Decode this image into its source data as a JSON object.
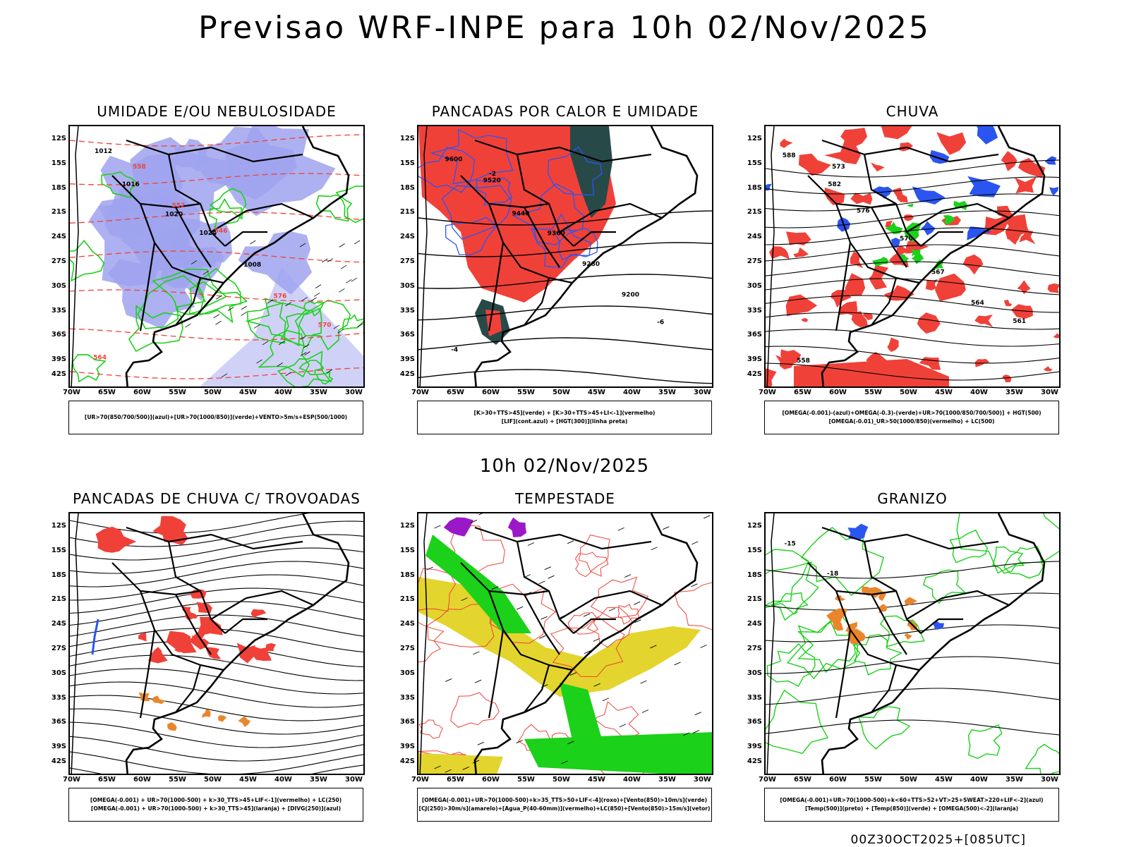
{
  "main_title": "Previsao WRF-INPE  para 10h 02/Nov/2025",
  "mid_title": "10h 02/Nov/2025",
  "footer": "00Z30OCT2025+[085UTC]",
  "lat_labels": [
    "12S",
    "15S",
    "18S",
    "21S",
    "24S",
    "27S",
    "30S",
    "33S",
    "36S",
    "39S",
    "42S"
  ],
  "lon_labels": [
    "70W",
    "65W",
    "60W",
    "55W",
    "50W",
    "45W",
    "40W",
    "35W",
    "30W"
  ],
  "colors": {
    "humidity_blue": "#9fa3ef",
    "green": "#1bd119",
    "red": "#f04139",
    "dark_teal": "#274a48",
    "blue": "#2b55f0",
    "yellow": "#e3d52d",
    "purple": "#9b18c8",
    "orange": "#e9862c"
  },
  "panels": [
    {
      "title": "UMIDADE E/OU NEBULOSIDADE",
      "legend": [
        "[UR>70(850/700/500)](azul)+[UR>70(1000/850)](verde)+VENTO>5m/s+ESP(500/1000)"
      ],
      "labels": [
        "1012",
        "1016",
        "1020",
        "1024",
        "1008",
        "576",
        "570",
        "564",
        "558",
        "552",
        "546"
      ]
    },
    {
      "title": "PANCADAS POR CALOR E UMIDADE",
      "legend": [
        "[K>30+TTS>45](verde) + [K>30+TTS>45+LI<-1](vermelho)",
        "[LIF](cont.azul) + [HGT(300)](linha preta)"
      ],
      "labels": [
        "9600",
        "9520",
        "9440",
        "9360",
        "9280",
        "9200",
        "-6",
        "-4",
        "-2"
      ]
    },
    {
      "title": "CHUVA",
      "legend": [
        "[OMEGA(-0.001)-(azul)+OMEGA(-0.3)-(verde)+UR>70(1000/850/700/500)] + HGT(500)",
        "[OMEGA(-0.01)_UR>50(1000/850)(vermelho) + LC(500)"
      ],
      "labels": [
        "588",
        "582",
        "576",
        "570",
        "567",
        "564",
        "561",
        "558",
        "573"
      ]
    },
    {
      "title": "PANCADAS DE CHUVA C/ TROVOADAS",
      "legend": [
        "[OMEGA(-0.001) + UR>70(1000-500) + k>30_TTS>45+LIF<-1](vermelho) + LC(250)",
        "[OMEGA(-0.001) + UR>70(1000-500) + k>30_TTS>45](laranja) + [DIVG(250)](azul)"
      ],
      "labels": []
    },
    {
      "title": "TEMPESTADE",
      "legend": [
        "[OMEGA(-0.001)+UR>70(1000-500)+k>35_TTS>50+LIF<-4](roxo)+[Vento(850)>10m/s](verde)",
        "[CJ(250)>30m/s](amarelo)+[Agua_P(40-60mm)](vermelho)+LC(850)+[Vento(850)>15m/s](vetor)"
      ],
      "labels": []
    },
    {
      "title": "GRANIZO",
      "legend": [
        "[OMEGA(-0.001)+UR>70(1000-500)+k<60+TTS>52+VT>25+SWEAT>220+LIF<-2](azul)",
        "[Temp(500)](preto) + [Temp(850)](verde) + [OMEGA(500)<-2](laranja)"
      ],
      "labels": [
        "-15",
        "-18"
      ]
    }
  ]
}
